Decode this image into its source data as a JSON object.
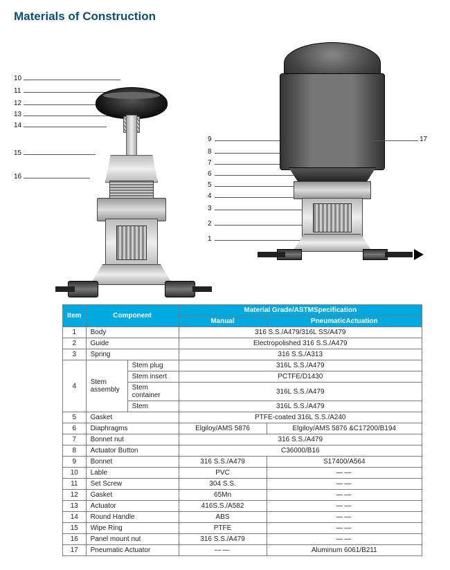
{
  "title": "Materials of Construction",
  "colors": {
    "title": "#0a4f7a",
    "header_bg": "#00a9e0",
    "header_fg": "#ffffff",
    "border": "#7a7a7a",
    "page_bg": "#ffffff"
  },
  "callouts": {
    "left": [
      "10",
      "11",
      "12",
      "13",
      "14",
      "15",
      "16"
    ],
    "middle": [
      "9",
      "8",
      "7",
      "6",
      "5",
      "4",
      "3",
      "2",
      "1"
    ],
    "right": [
      "17"
    ]
  },
  "table": {
    "headers": {
      "item": "Item",
      "component": "Component",
      "spec_group": "Material Grade/ASTMSpecification",
      "manual": "Manual",
      "pneumatic": "PneumaticActuation"
    },
    "rows": [
      {
        "n": "1",
        "comp": "Body",
        "span": true,
        "val": "316 S.S./A479/316L SS/A479"
      },
      {
        "n": "2",
        "comp": "Guide",
        "span": true,
        "val": "Electropolished 316 S.S./A479"
      },
      {
        "n": "3",
        "comp": "Spring",
        "span": true,
        "val": "316 S.S./A313"
      },
      {
        "n": "4",
        "comp": "Stem assembly",
        "sub": [
          {
            "s": "Stem plug",
            "span": true,
            "val": "316L S.S./A479"
          },
          {
            "s": "Stem insert",
            "span": true,
            "val": "PCTFE/D1430"
          },
          {
            "s": "Stem container",
            "span": true,
            "val": "316L S.S./A479"
          },
          {
            "s": "Stem",
            "span": true,
            "val": "316L S.S./A479"
          }
        ]
      },
      {
        "n": "5",
        "comp": "Gasket",
        "span": true,
        "val": "PTFE-coated 316L S.S./A240"
      },
      {
        "n": "6",
        "comp": "Diaphragms",
        "m": "Elgiloy/AMS 5876",
        "p": "Elgiloy/AMS 5876 &C17200/B194"
      },
      {
        "n": "7",
        "comp": "Bonnet nut",
        "span": true,
        "val": "316 S.S./A479"
      },
      {
        "n": "8",
        "comp": "Actuator Button",
        "span": true,
        "val": "C36000/B16"
      },
      {
        "n": "9",
        "comp": "Bonnet",
        "m": "316 S.S./A479",
        "p": "S17400/A564"
      },
      {
        "n": "10",
        "comp": "Lable",
        "m": "PVC",
        "p": "——"
      },
      {
        "n": "11",
        "comp": "Set Screw",
        "m": "304 S.S.",
        "p": "——"
      },
      {
        "n": "12",
        "comp": "Gasket",
        "m": "65Mn",
        "p": "——"
      },
      {
        "n": "13",
        "comp": "Actuator",
        "m": "416S.S./A582",
        "p": "——"
      },
      {
        "n": "14",
        "comp": "Round Handle",
        "m": "ABS",
        "p": "——"
      },
      {
        "n": "15",
        "comp": "Wipe Ring",
        "m": "PTFE",
        "p": "——"
      },
      {
        "n": "16",
        "comp": "Panel mount nut",
        "m": "316 S.S./A479",
        "p": "——"
      },
      {
        "n": "17",
        "comp": "Pneumatic Actuator",
        "m": "——",
        "p": "Aluminum 6061/B211"
      }
    ]
  },
  "diagram": {
    "manual_parts": [
      "handle",
      "stem",
      "bonnet-nut",
      "bonnet",
      "union",
      "body",
      "ports"
    ],
    "pneumatic_parts": [
      "actuator-cap",
      "actuator-body",
      "union",
      "body",
      "ports",
      "flow-arrow"
    ]
  }
}
